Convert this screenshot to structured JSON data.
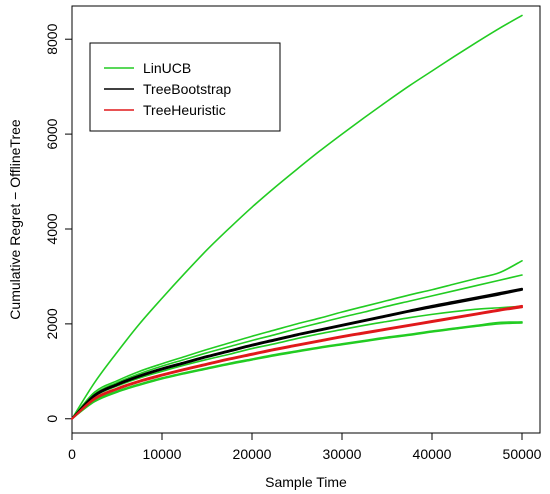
{
  "chart_data": {
    "type": "line",
    "title": "",
    "xlabel": "Sample Time",
    "ylabel": "Cumulative Regret − OfflineTree",
    "xlim": [
      0,
      52000
    ],
    "ylim": [
      -300,
      8700
    ],
    "x_ticks": [
      0,
      10000,
      20000,
      30000,
      40000,
      50000
    ],
    "y_ticks": [
      0,
      2000,
      4000,
      6000,
      8000
    ],
    "grid": false,
    "legend": {
      "position": "top-left",
      "entries": [
        {
          "label": "LinUCB",
          "color": "#22cc22"
        },
        {
          "label": "TreeBootstrap",
          "color": "#000000"
        },
        {
          "label": "TreeHeuristic",
          "color": "#e0191b"
        }
      ]
    },
    "x": [
      0,
      2500,
      5000,
      7500,
      10000,
      12500,
      15000,
      17500,
      20000,
      22500,
      25000,
      27500,
      30000,
      32500,
      35000,
      37500,
      40000,
      42500,
      45000,
      47500,
      50000
    ],
    "series": [
      {
        "legend": "LinUCB",
        "color": "#22cc22",
        "values": [
          0,
          760,
          1400,
          2000,
          2540,
          3060,
          3560,
          4020,
          4460,
          4870,
          5260,
          5640,
          6000,
          6350,
          6690,
          7020,
          7330,
          7640,
          7940,
          8230,
          8500
        ]
      },
      {
        "legend": "LinUCB",
        "color": "#22cc22",
        "values": [
          0,
          560,
          800,
          1000,
          1160,
          1310,
          1460,
          1600,
          1740,
          1870,
          2000,
          2120,
          2250,
          2370,
          2490,
          2610,
          2720,
          2840,
          2960,
          3080,
          3330
        ]
      },
      {
        "legend": "LinUCB",
        "color": "#22cc22",
        "values": [
          0,
          520,
          760,
          950,
          1110,
          1250,
          1390,
          1520,
          1650,
          1770,
          1900,
          2020,
          2140,
          2250,
          2370,
          2480,
          2590,
          2700,
          2810,
          2920,
          3030
        ]
      },
      {
        "legend": "LinUCB",
        "color": "#22cc22",
        "values": [
          0,
          470,
          690,
          860,
          1000,
          1130,
          1250,
          1360,
          1480,
          1580,
          1690,
          1790,
          1880,
          1970,
          2050,
          2130,
          2200,
          2260,
          2310,
          2340,
          2370
        ]
      },
      {
        "legend": "LinUCB",
        "color": "#22cc22",
        "values": [
          0,
          380,
          580,
          730,
          860,
          970,
          1070,
          1170,
          1260,
          1350,
          1430,
          1510,
          1580,
          1650,
          1720,
          1780,
          1850,
          1910,
          1970,
          2030,
          2040
        ]
      },
      {
        "legend": "LinUCB",
        "color": "#22cc22",
        "values": [
          0,
          360,
          560,
          710,
          840,
          950,
          1050,
          1150,
          1240,
          1330,
          1410,
          1490,
          1560,
          1630,
          1700,
          1760,
          1830,
          1890,
          1950,
          2000,
          2020
        ]
      },
      {
        "legend": "TreeBootstrap",
        "color": "#000000",
        "values": [
          0,
          500,
          730,
          910,
          1060,
          1190,
          1320,
          1440,
          1560,
          1670,
          1780,
          1880,
          1980,
          2080,
          2180,
          2280,
          2380,
          2470,
          2560,
          2650,
          2740
        ]
      },
      {
        "legend": "TreeBootstrap",
        "color": "#000000",
        "values": [
          0,
          480,
          710,
          890,
          1040,
          1170,
          1300,
          1420,
          1540,
          1650,
          1760,
          1860,
          1960,
          2060,
          2160,
          2260,
          2350,
          2440,
          2530,
          2620,
          2720
        ]
      },
      {
        "legend": "TreeHeuristic",
        "color": "#e0191b",
        "values": [
          0,
          430,
          640,
          800,
          930,
          1050,
          1160,
          1270,
          1370,
          1470,
          1560,
          1650,
          1740,
          1820,
          1900,
          1980,
          2060,
          2140,
          2220,
          2300,
          2380
        ]
      },
      {
        "legend": "TreeHeuristic",
        "color": "#e0191b",
        "values": [
          0,
          410,
          620,
          780,
          910,
          1030,
          1140,
          1250,
          1350,
          1450,
          1540,
          1630,
          1720,
          1800,
          1880,
          1960,
          2040,
          2120,
          2200,
          2280,
          2350
        ]
      }
    ]
  }
}
